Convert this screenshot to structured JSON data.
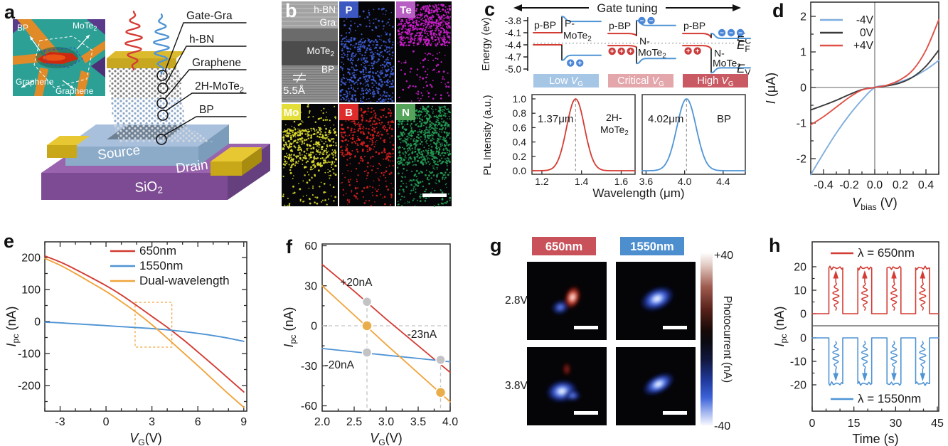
{
  "panels": {
    "a": {
      "letter": "a",
      "inset_labels": {
        "bp": "BP",
        "mote2": "MoTe₂",
        "gra1": "Graphene",
        "gra2": "Graphene"
      },
      "stack_labels": [
        "Gate-Gra",
        "h-BN",
        "Graphene",
        "2H-MoTe₂",
        "BP"
      ],
      "source": "Source",
      "drain": "Drain",
      "substrate": "SiO₂"
    },
    "b": {
      "letter": "b",
      "tem_labels": {
        "hbn": "h-BN",
        "gra": "Gra",
        "mote2": "MoTe₂",
        "bp": "BP",
        "scale": "5.5Å"
      },
      "elements": [
        {
          "symbol": "P",
          "chip": "#3d57c0",
          "dot": "#4161de",
          "bands": [
            [
              0.34,
              1.0,
              520
            ],
            [
              0.06,
              0.34,
              70
            ]
          ]
        },
        {
          "symbol": "Te",
          "chip": "#b75ec2",
          "dot": "#cf1fcf",
          "bands": [
            [
              0.03,
              0.44,
              640
            ],
            [
              0.44,
              1.0,
              90
            ]
          ]
        },
        {
          "symbol": "Mo",
          "chip": "#e4de3b",
          "dot": "#e2e22e",
          "bands": [
            [
              0.24,
              0.62,
              420
            ],
            [
              0.0,
              0.24,
              45
            ],
            [
              0.62,
              1.0,
              80
            ]
          ]
        },
        {
          "symbol": "B",
          "chip": "#de2b2b",
          "dot": "#e12020",
          "bands": [
            [
              0.04,
              0.56,
              330
            ],
            [
              0.56,
              1.0,
              100
            ]
          ]
        },
        {
          "symbol": "N",
          "chip": "#56a45b",
          "dot": "#23a457",
          "bands": [
            [
              0.02,
              0.6,
              660
            ],
            [
              0.6,
              1.0,
              150
            ]
          ]
        }
      ]
    },
    "c": {
      "letter": "c",
      "header": "Gate tuning",
      "energy_label": "Energy (ev)",
      "energy_ticks": [
        -3.8,
        -4.1,
        -4.4,
        -4.7,
        -5.0
      ],
      "ef_energy": -4.36,
      "band_edge_labels": [
        {
          "sym": "E",
          "sub": "C",
          "E": -4.2
        },
        {
          "sym": "E",
          "sub": "F",
          "E": -4.4
        },
        {
          "sym": "E",
          "sub": "V",
          "E": -4.98
        }
      ],
      "vg": {
        "sym": "V",
        "sub": "G"
      },
      "diagrams": [
        {
          "badge_pre": "Low ",
          "badge_color": "#a6c6e6",
          "bp_label": "p-BP",
          "mo_label": [
            "P-",
            "MoTe₂"
          ],
          "mo_E": [
            -3.88,
            -4.18
          ],
          "red_ec": -4.1,
          "red_ev": -4.4,
          "blue_ec": -3.82,
          "blue_ev": -4.66,
          "bend": 0,
          "carriers": [
            {
              "sign": "+",
              "color": "#4a86d8",
              "fx": 0.55,
              "E": -4.85,
              "n": 2
            }
          ]
        },
        {
          "badge_pre": "Critical ",
          "badge_color": "#e3a6ab",
          "bp_label": "p-BP",
          "mo_label": [
            "N-",
            "MoTe₂"
          ],
          "mo_E": [
            -4.32,
            -4.6
          ],
          "red_ec": -4.12,
          "red_ev": -4.42,
          "blue_ec": -3.92,
          "blue_ev": -4.74,
          "bend": 0.05,
          "carriers": [
            {
              "sign": "−",
              "color": "#4a86d8",
              "fx": 0.5,
              "E": -3.8,
              "n": 2
            },
            {
              "sign": "+",
              "color": "#cc3b3b",
              "fx": 0.06,
              "E": -4.56,
              "n": 3
            }
          ]
        },
        {
          "badge_pre": "High ",
          "badge_color": "#c95a63",
          "bp_label": "p-BP",
          "mo_label": [
            "N-",
            "MoTe₂"
          ],
          "mo_E": [
            -4.62,
            -4.87
          ],
          "red_ec": -4.12,
          "red_ev": -4.42,
          "blue_ec": -4.24,
          "blue_ev": -4.97,
          "bend": 0.1,
          "carriers": [
            {
              "sign": "−",
              "color": "#4a86d8",
              "fx": 0.58,
              "E": -4.1,
              "n": 3
            },
            {
              "sign": "+",
              "color": "#cc3b3b",
              "fx": 0.08,
              "E": -4.55,
              "n": 2
            }
          ]
        }
      ],
      "chart_data": [
        {
          "type": "line",
          "name": "PL 2H-MoTe2",
          "color": "#d43b33",
          "peak_um": 1.37,
          "sigma_um": 0.045,
          "xlim": [
            1.15,
            1.67
          ],
          "xticks": [
            1.2,
            1.4,
            1.6
          ],
          "peak_label": "1.37μm",
          "material": "2H-",
          "material2": "MoTe₂"
        },
        {
          "type": "line",
          "name": "PL BP",
          "color": "#4f94d4",
          "peak_um": 4.02,
          "sigma_um": 0.1,
          "xlim": [
            3.56,
            4.63
          ],
          "xticks": [
            3.6,
            4.0,
            4.4
          ],
          "peak_label": "4.02μm",
          "material": "BP",
          "material2": ""
        }
      ],
      "pl_ylabel": "PL Intensity (a.u.)",
      "pl_xlabel": "Wavelength (μm)",
      "pl_yticks": [
        0,
        0.2,
        0.4,
        0.6,
        0.8,
        1
      ]
    },
    "d": {
      "letter": "d",
      "chart_data": {
        "type": "line",
        "xlabel": {
          "sym": "V",
          "sub": "bias",
          "unit": " (V)"
        },
        "ylabel": {
          "sym": "I",
          "sub": "",
          "unit": " (μA)"
        },
        "xlim": [
          -0.5,
          0.5
        ],
        "ylim": [
          -2.44,
          2.4
        ],
        "xticks": [
          -0.4,
          -0.2,
          0,
          0.2,
          0.4
        ],
        "yticks": [
          -2,
          -1,
          0,
          1,
          2
        ],
        "x": [
          -0.5,
          -0.4,
          -0.3,
          -0.2,
          -0.1,
          0,
          0.1,
          0.2,
          0.3,
          0.4,
          0.5
        ],
        "series": [
          {
            "name": "-4V",
            "color": "#7faede",
            "y": [
              -2.45,
              -1.85,
              -1.28,
              -0.78,
              -0.35,
              0,
              0.06,
              0.16,
              0.3,
              0.5,
              0.76
            ]
          },
          {
            "name": "0V",
            "color": "#3a3a3a",
            "y": [
              -0.63,
              -0.5,
              -0.36,
              -0.2,
              -0.06,
              0,
              0.05,
              0.13,
              0.3,
              0.6,
              1.05
            ]
          },
          {
            "name": "+4V",
            "color": "#e05047",
            "y": [
              -1.05,
              -0.82,
              -0.55,
              -0.28,
              -0.07,
              0,
              0.07,
              0.22,
              0.5,
              1.05,
              1.9
            ]
          }
        ]
      }
    },
    "e": {
      "letter": "e",
      "chart_data": {
        "type": "line",
        "xlabel": {
          "sym": "V",
          "sub": "G",
          "unit": "(V)"
        },
        "ylabel": {
          "sym": "I",
          "sub": "pc",
          "unit": " (nA)"
        },
        "xlim": [
          -4,
          9.2
        ],
        "ylim": [
          -280,
          249
        ],
        "xticks": [
          -3,
          0,
          3,
          6,
          9
        ],
        "yticks": [
          -200,
          -100,
          0,
          100,
          200
        ],
        "x": [
          -4,
          -3,
          -2,
          -1,
          0,
          1,
          2,
          3,
          4,
          5,
          6,
          7,
          8,
          9
        ],
        "series": [
          {
            "name": "650nm",
            "color": "#d43b33",
            "y": [
              205,
              186,
              163,
              138,
              112,
              83,
              50,
              16,
              -18,
              -55,
              -95,
              -136,
              -178,
              -220
            ]
          },
          {
            "name": "1550nm",
            "color": "#4f94d4",
            "y": [
              -2,
              -4,
              -7,
              -10,
              -13,
              -16,
              -19,
              -22,
              -26,
              -31,
              -37,
              -44,
              -52,
              -62
            ]
          },
          {
            "name": "Dual-wavelength",
            "color": "#f0a43c",
            "y": [
              197,
              176,
              150,
              122,
              94,
              62,
              28,
              -10,
              -52,
              -95,
              -138,
              -182,
              -226,
              -268
            ]
          }
        ],
        "zoom_box": {
          "x0": 1.9,
          "x1": 4.3,
          "y0": -80,
          "y1": 60,
          "color": "#f0a43c"
        }
      }
    },
    "f": {
      "letter": "f",
      "chart_data": {
        "type": "line",
        "xlabel": {
          "sym": "V",
          "sub": "G",
          "unit": "(V)"
        },
        "ylabel": {
          "sym": "I",
          "sub": "pc",
          "unit": " (nA)"
        },
        "xlim": [
          2,
          4
        ],
        "ylim": [
          -62,
          62
        ],
        "xticks": [
          2.0,
          2.5,
          3.0,
          3.5,
          4.0
        ],
        "yticks": [
          -60,
          -30,
          0,
          30,
          60
        ],
        "x": [
          2,
          2.5,
          3,
          3.5,
          4
        ],
        "series": [
          {
            "name": "650nm",
            "color": "#d43b33",
            "y": [
              46,
              26,
              5,
              -15,
              -35
            ]
          },
          {
            "name": "1550nm",
            "color": "#4f94d4",
            "y": [
              -17,
              -19.5,
              -22,
              -24.5,
              -27
            ]
          },
          {
            "name": "Dual-wavelength",
            "color": "#f0a43c",
            "y": [
              30,
              8,
              -14,
              -35.5,
              -57
            ]
          }
        ],
        "guides": {
          "vlines": [
            2.7,
            3.85
          ],
          "hline": 0
        },
        "markers": {
          "gray": [
            [
              2.7,
              18
            ],
            [
              2.7,
              -20
            ],
            [
              3.85,
              -25.5
            ]
          ],
          "orange": [
            [
              2.7,
              0
            ],
            [
              3.85,
              -50
            ]
          ]
        },
        "annotations": [
          {
            "text": "+20nA",
            "x": 2.28,
            "y": 30
          },
          {
            "text": "-23nA",
            "x": 3.33,
            "y": -9
          },
          {
            "text": "-20nA",
            "x": 2.04,
            "y": -32
          }
        ]
      }
    },
    "g": {
      "letter": "g",
      "col_headers": [
        {
          "text": "650nm",
          "color": "#c9515a"
        },
        {
          "text": "1550nm",
          "color": "#4d8fce"
        }
      ],
      "row_labels": [
        "2.8V",
        "3.8V"
      ],
      "colorbar": {
        "max": "+40",
        "min": "-40",
        "label": "Photocurrent (nA)"
      }
    },
    "h": {
      "letter": "h",
      "chart_data": {
        "type": "line",
        "xlabel": "Time (s)",
        "ylabel": {
          "sym": "I",
          "sub": "pc",
          "unit": " (nA)"
        },
        "xlim": [
          0,
          45.5
        ],
        "xticks": [
          0,
          15,
          30,
          45
        ],
        "subplots": [
          {
            "legend": "λ = 650nm",
            "color": "#d43b33",
            "amplitude": 19.5,
            "yticks": [
              0,
              10,
              20
            ],
            "pulses": [
              [
                6,
                11
              ],
              [
                16.4,
                21.4
              ],
              [
                26.9,
                31.9
              ],
              [
                37.2,
                42.2
              ]
            ]
          },
          {
            "legend": "λ = 1550nm",
            "color": "#4f94d4",
            "amplitude": -19.5,
            "yticks": [
              0,
              -10,
              -20
            ],
            "pulses": [
              [
                6,
                11
              ],
              [
                16.4,
                21.4
              ],
              [
                26.9,
                31.9
              ],
              [
                37.2,
                42.2
              ]
            ]
          }
        ]
      }
    }
  }
}
